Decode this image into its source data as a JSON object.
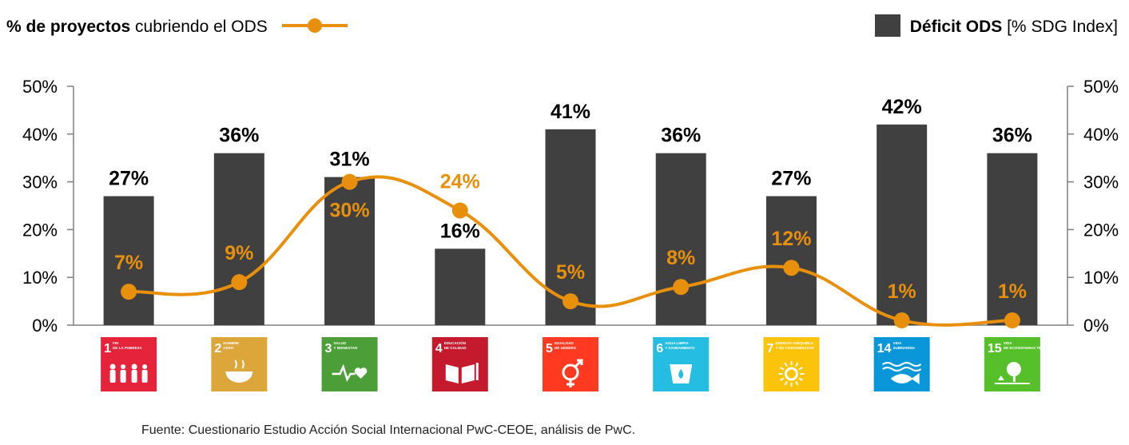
{
  "legend": {
    "line_label_bold": "% de proyectos",
    "line_label_rest": " cubriendo el ODS",
    "bar_label_bold": "Déficit ODS",
    "bar_label_rest": " [% SDG Index]"
  },
  "source": "Fuente: Cuestionario Estudio Acción Social Internacional PwC-CEOE, análisis de PwC.",
  "chart_data": {
    "type": "bar",
    "categories": [
      "ODS 1",
      "ODS 2",
      "ODS 3",
      "ODS 4",
      "ODS 5",
      "ODS 6",
      "ODS 7",
      "ODS 14",
      "ODS 15"
    ],
    "series": [
      {
        "name": "Déficit ODS [% SDG Index]",
        "type": "bar",
        "values": [
          27,
          36,
          31,
          16,
          41,
          36,
          27,
          42,
          36
        ],
        "color": "#404040"
      },
      {
        "name": "% de proyectos cubriendo el ODS",
        "type": "line",
        "values": [
          7,
          9,
          30,
          24,
          5,
          8,
          12,
          1,
          1
        ],
        "color": "#E8900C"
      }
    ],
    "ylim": [
      0,
      50
    ],
    "yticks": [
      "0%",
      "10%",
      "20%",
      "30%",
      "40%",
      "50%"
    ],
    "legend_position": "top",
    "grid": false
  },
  "sdg_icons": [
    {
      "number": "1",
      "line1": "FIN",
      "line2": "DE LA POBREZA",
      "color": "#E5243B",
      "icon": "people-icon"
    },
    {
      "number": "2",
      "line1": "HAMBRE",
      "line2": "CERO",
      "color": "#DDA63A",
      "icon": "bowl-icon"
    },
    {
      "number": "3",
      "line1": "SALUD",
      "line2": "Y BIENESTAR",
      "color": "#4C9F38",
      "icon": "heartbeat-icon"
    },
    {
      "number": "4",
      "line1": "EDUCACIÓN",
      "line2": "DE CALIDAD",
      "color": "#C5192D",
      "icon": "book-icon"
    },
    {
      "number": "5",
      "line1": "IGUALDAD",
      "line2": "DE GÉNERO",
      "color": "#FF3A21",
      "icon": "gender-icon"
    },
    {
      "number": "6",
      "line1": "AGUA LIMPIA",
      "line2": "Y SANEAMIENTO",
      "color": "#26BDE2",
      "icon": "water-drop-icon"
    },
    {
      "number": "7",
      "line1": "ENERGÍA ASEQUIBLE",
      "line2": "Y NO CONTAMINANTE",
      "color": "#FCC30B",
      "icon": "sun-icon"
    },
    {
      "number": "14",
      "line1": "VIDA",
      "line2": "SUBMARINA",
      "color": "#0A97D9",
      "icon": "fish-icon"
    },
    {
      "number": "15",
      "line1": "VIDA",
      "line2": "DE ECOSISTEMAS TERRESTRES",
      "color": "#56C02B",
      "icon": "tree-icon"
    }
  ]
}
